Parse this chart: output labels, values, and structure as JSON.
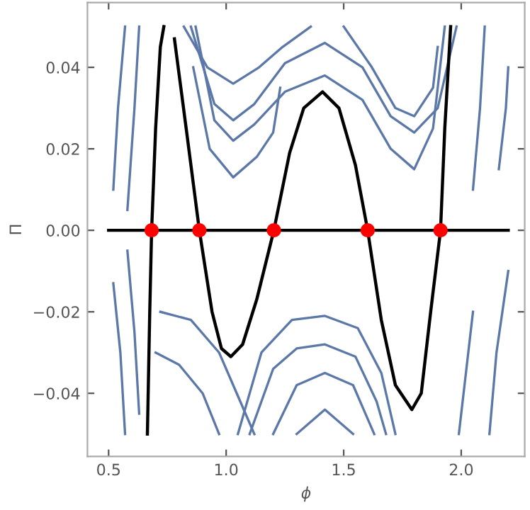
{
  "chart_data": {
    "type": "line",
    "xlabel": "ϕ",
    "ylabel": "Π",
    "xlim": [
      0.41,
      2.27
    ],
    "ylim": [
      -0.0555,
      0.0559
    ],
    "xticks": [
      {
        "value": 0.5,
        "label": "0.5"
      },
      {
        "value": 1.0,
        "label": "1.0"
      },
      {
        "value": 1.5,
        "label": "1.5"
      },
      {
        "value": 2.0,
        "label": "2.0"
      }
    ],
    "yticks": [
      {
        "value": -0.04,
        "label": "−0.04"
      },
      {
        "value": -0.02,
        "label": "−0.02"
      },
      {
        "value": 0,
        "label": "0.00"
      },
      {
        "value": 0.02,
        "label": "0.02"
      },
      {
        "value": 0.04,
        "label": "0.04"
      }
    ],
    "grid": false,
    "legend": false,
    "series": [
      {
        "color": "#5b78a8",
        "x": [
          0.85,
          0.95,
          1.03,
          1.12,
          1.25,
          1.42,
          1.58,
          1.7,
          1.8,
          1.9,
          1.98
        ],
        "values": [
          0.05,
          0.031,
          0.027,
          0.031,
          0.041,
          0.046,
          0.04,
          0.028,
          0.024,
          0.03,
          0.05
        ]
      },
      {
        "color": "#5b78a8",
        "x": [
          0.87,
          0.95,
          1.03,
          1.12,
          1.25,
          1.42,
          1.58,
          1.7,
          1.8,
          1.88,
          1.93
        ],
        "values": [
          0.05,
          0.027,
          0.022,
          0.026,
          0.034,
          0.038,
          0.032,
          0.02,
          0.015,
          0.025,
          0.05
        ]
      },
      {
        "color": "#5b78a8",
        "x": [
          0.82,
          0.92,
          1.03,
          1.14,
          1.24,
          1.36
        ],
        "values": [
          0.05,
          0.04,
          0.036,
          0.04,
          0.045,
          0.05
        ]
      },
      {
        "color": "#5b78a8",
        "x": [
          0.86,
          0.93,
          1.03,
          1.13,
          1.2,
          1.23
        ],
        "values": [
          0.04,
          0.02,
          0.013,
          0.018,
          0.024,
          0.035
        ]
      },
      {
        "color": "#5b78a8",
        "x": [
          1.5,
          1.62,
          1.72,
          1.8,
          1.88,
          1.9
        ],
        "values": [
          0.05,
          0.04,
          0.03,
          0.028,
          0.035,
          0.045
        ]
      },
      {
        "color": "#5b78a8",
        "x": [
          1.05,
          1.15,
          1.28,
          1.42,
          1.56,
          1.66,
          1.72
        ],
        "values": [
          -0.05,
          -0.03,
          -0.022,
          -0.021,
          -0.024,
          -0.035,
          -0.05
        ]
      },
      {
        "color": "#5b78a8",
        "x": [
          1.1,
          1.2,
          1.3,
          1.42,
          1.55,
          1.64,
          1.68
        ],
        "values": [
          -0.05,
          -0.034,
          -0.029,
          -0.028,
          -0.031,
          -0.042,
          -0.05
        ]
      },
      {
        "color": "#5b78a8",
        "x": [
          1.2,
          1.3,
          1.42,
          1.54,
          1.63
        ],
        "values": [
          -0.05,
          -0.038,
          -0.035,
          -0.038,
          -0.05
        ]
      },
      {
        "color": "#5b78a8",
        "x": [
          1.3,
          1.42,
          1.54
        ],
        "values": [
          -0.05,
          -0.044,
          -0.05
        ]
      },
      {
        "color": "#5b78a8",
        "x": [
          0.7,
          0.8,
          0.9,
          0.97
        ],
        "values": [
          -0.03,
          -0.033,
          -0.04,
          -0.05
        ]
      },
      {
        "color": "#5b78a8",
        "x": [
          0.72,
          0.85,
          0.97,
          1.06,
          1.12
        ],
        "values": [
          -0.02,
          -0.022,
          -0.03,
          -0.042,
          -0.05
        ]
      },
      {
        "color": "#5b78a8",
        "x": [
          0.52,
          0.55,
          0.57
        ],
        "values": [
          -0.013,
          -0.03,
          -0.05
        ]
      },
      {
        "color": "#5b78a8",
        "x": [
          0.58,
          0.61,
          0.63
        ],
        "values": [
          -0.005,
          -0.025,
          -0.045
        ]
      },
      {
        "color": "#5b78a8",
        "x": [
          2.05,
          2.02,
          1.99
        ],
        "values": [
          -0.02,
          -0.035,
          -0.05
        ]
      },
      {
        "color": "#5b78a8",
        "x": [
          2.2,
          2.15,
          2.12
        ],
        "values": [
          -0.01,
          -0.03,
          -0.05
        ]
      },
      {
        "color": "#5b78a8",
        "x": [
          0.52,
          0.54,
          0.57
        ],
        "values": [
          0.01,
          0.03,
          0.05
        ]
      },
      {
        "color": "#5b78a8",
        "x": [
          0.58,
          0.61,
          0.63
        ],
        "values": [
          0.005,
          0.03,
          0.05
        ]
      },
      {
        "color": "#5b78a8",
        "x": [
          2.05,
          2.08,
          2.1
        ],
        "values": [
          0.01,
          0.03,
          0.05
        ]
      },
      {
        "color": "#5b78a8",
        "x": [
          2.16,
          2.19,
          2.2
        ],
        "values": [
          0.015,
          0.03,
          0.04
        ]
      },
      {
        "color": "#000000",
        "x": [
          0.5,
          2.2
        ],
        "values": [
          0,
          0
        ]
      },
      {
        "color": "#000000",
        "x": [
          0.665,
          0.675,
          0.683,
          0.7,
          0.72,
          0.735,
          0.76,
          0.78,
          0.83,
          0.886,
          0.94,
          0.98,
          1.02,
          1.07,
          1.13,
          1.203,
          1.27,
          1.33,
          1.41,
          1.48,
          1.55,
          1.602,
          1.66,
          1.72,
          1.79,
          1.83,
          1.87,
          1.912,
          1.93,
          1.955
        ],
        "values": [
          -0.05,
          -0.02,
          0,
          0.025,
          0.045,
          0.05,
          null,
          0.047,
          0.025,
          0,
          -0.02,
          -0.029,
          -0.031,
          -0.028,
          -0.017,
          0,
          0.019,
          0.03,
          0.034,
          0.03,
          0.016,
          0,
          -0.022,
          -0.038,
          -0.044,
          -0.04,
          -0.02,
          0,
          0.025,
          0.05
        ]
      },
      {
        "type": "scatter",
        "color": "#ff0000",
        "marker": "circle",
        "x": [
          0.683,
          0.886,
          1.203,
          1.602,
          1.912
        ],
        "values": [
          0,
          0,
          0,
          0,
          0
        ]
      }
    ]
  }
}
